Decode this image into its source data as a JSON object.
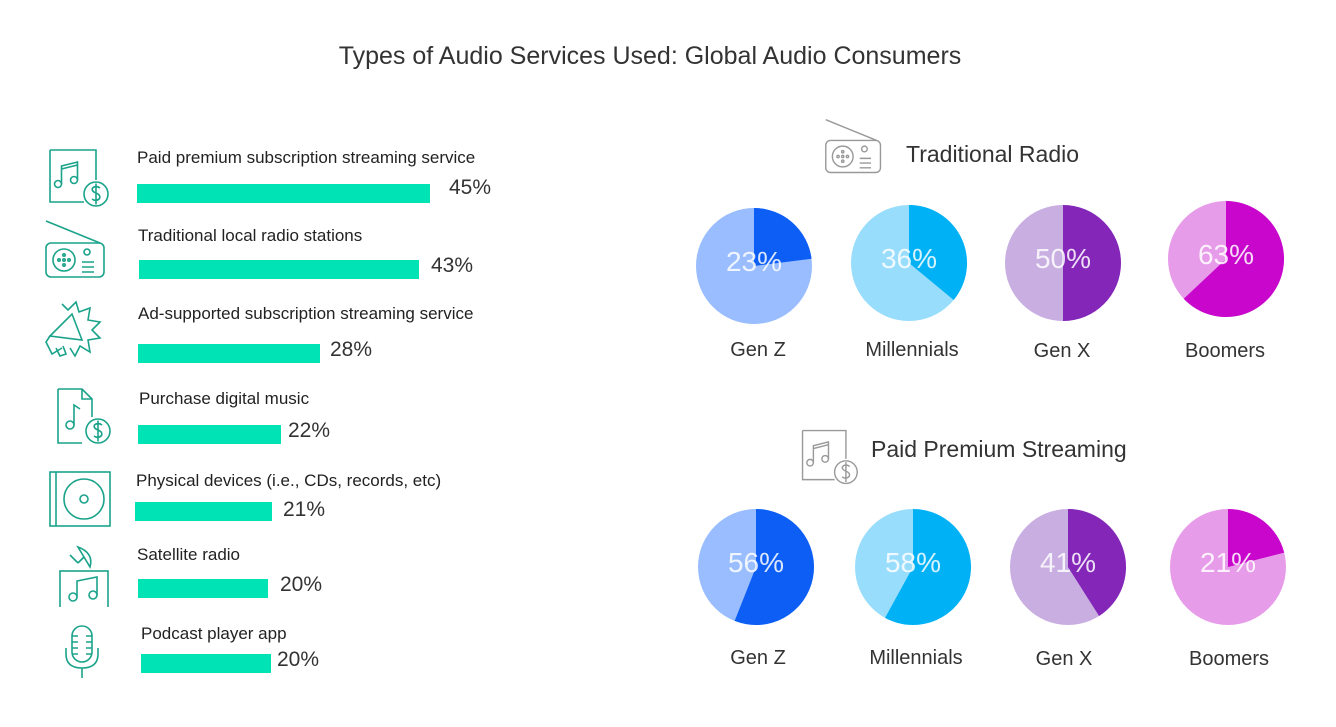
{
  "title": "Types of Audio Services Used: Global Audio Consumers",
  "colors": {
    "bar": "#00e3b4",
    "icon_green": "#1aa38a",
    "icon_gray": "#999999",
    "genz_light": "#99bdff",
    "genz_dark": "#0d5ef5",
    "millennials_light": "#99ddfd",
    "millennials_dark": "#00b1f6",
    "genx_light": "#c9aee2",
    "genx_dark": "#8427b9",
    "boomers_light": "#e79cea",
    "boomers_dark": "#c806cc"
  },
  "chart_data": [
    {
      "type": "bar",
      "orientation": "horizontal",
      "categories": [
        "Paid premium subscription streaming service",
        "Traditional local radio stations",
        "Ad-supported subscription streaming service",
        "Purchase digital music",
        "Physical devices (i.e., CDs, records, etc)",
        "Satellite radio",
        "Podcast player app"
      ],
      "values": [
        45,
        43,
        28,
        22,
        21,
        20,
        20
      ],
      "value_labels": [
        "45%",
        "43%",
        "28%",
        "22%",
        "21%",
        "20%",
        "20%"
      ],
      "icons": [
        "music-file-dollar-icon",
        "radio-icon",
        "megaphone-icon",
        "digital-music-dollar-icon",
        "cd-player-icon",
        "satellite-radio-icon",
        "microphone-icon"
      ]
    },
    {
      "type": "pie",
      "title": "Traditional Radio",
      "icon": "radio-icon",
      "pies": [
        {
          "label": "Gen Z",
          "value": 23,
          "value_label": "23%",
          "light": "#99bdff",
          "dark": "#0d5ef5"
        },
        {
          "label": "Millennials",
          "value": 36,
          "value_label": "36%",
          "light": "#99ddfd",
          "dark": "#00b1f6"
        },
        {
          "label": "Gen X",
          "value": 50,
          "value_label": "50%",
          "light": "#c9aee2",
          "dark": "#8427b9"
        },
        {
          "label": "Boomers",
          "value": 63,
          "value_label": "63%",
          "light": "#e79cea",
          "dark": "#c806cc"
        }
      ]
    },
    {
      "type": "pie",
      "title": "Paid Premium Streaming",
      "icon": "music-file-dollar-icon",
      "pies": [
        {
          "label": "Gen Z",
          "value": 56,
          "value_label": "56%",
          "light": "#99bdff",
          "dark": "#0d5ef5"
        },
        {
          "label": "Millennials",
          "value": 58,
          "value_label": "58%",
          "light": "#99ddfd",
          "dark": "#00b1f6"
        },
        {
          "label": "Gen X",
          "value": 41,
          "value_label": "41%",
          "light": "#c9aee2",
          "dark": "#8427b9"
        },
        {
          "label": "Boomers",
          "value": 21,
          "value_label": "21%",
          "light": "#e79cea",
          "dark": "#c806cc"
        }
      ]
    }
  ]
}
